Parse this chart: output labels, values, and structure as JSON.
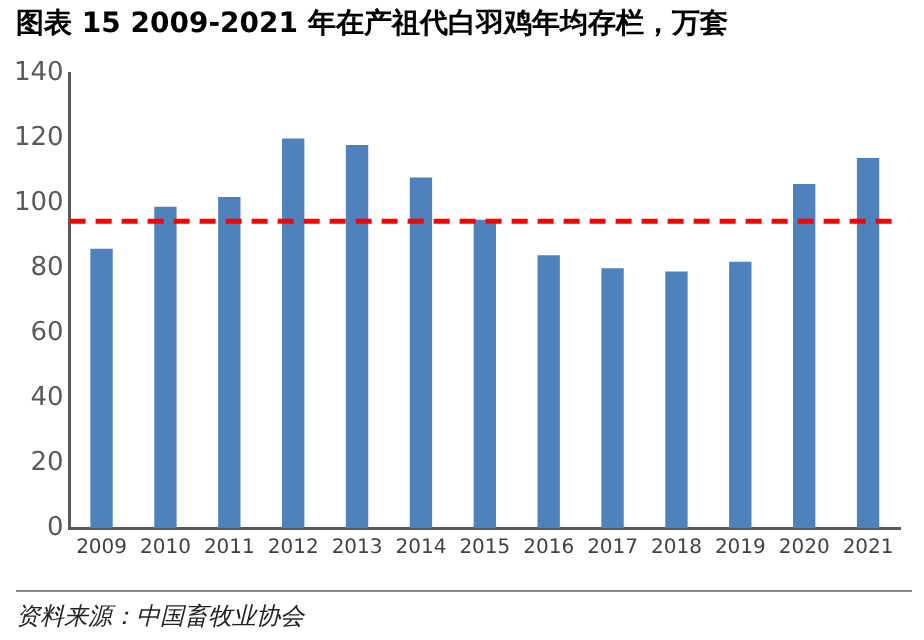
{
  "chart_data": {
    "type": "bar",
    "title": "图表 15 2009-2021 年在产祖代白羽鸡年均存栏，万套",
    "categories": [
      "2009",
      "2010",
      "2011",
      "2012",
      "2013",
      "2014",
      "2015",
      "2016",
      "2017",
      "2018",
      "2019",
      "2020",
      "2021"
    ],
    "values": [
      86,
      99,
      102,
      120,
      118,
      108,
      95,
      84,
      80,
      79,
      82,
      106,
      114
    ],
    "color": "#4f81bd",
    "ylim": [
      0,
      140
    ],
    "yticks": [
      0,
      20,
      40,
      60,
      80,
      100,
      120,
      140
    ],
    "grid": false,
    "legend": false,
    "ref_lines": [
      {
        "axis": "y",
        "value": 94.5,
        "color": "#ff0000",
        "line_style": "dashed"
      }
    ],
    "annotations": [
      "资料来源：中国畜牧业协会"
    ]
  }
}
